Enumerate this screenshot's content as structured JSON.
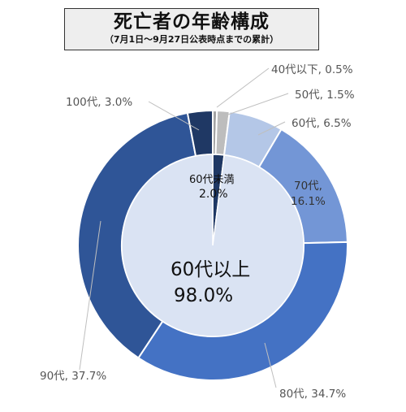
{
  "title": "死亡者の年齢構成",
  "subtitle": "（7月1日～9月27日公表時点までの累計）",
  "chart_data": {
    "type": "pie",
    "subtype": "nested-donut",
    "outer": [
      {
        "label": "40代以下",
        "value": 0.5,
        "text": "40代以下, 0.5%",
        "color": "#a5a5a5"
      },
      {
        "label": "50代",
        "value": 1.5,
        "text": "50代, 1.5%",
        "color": "#bdbdbd"
      },
      {
        "label": "60代",
        "value": 6.5,
        "text": "60代, 6.5%",
        "color": "#b4c7e7"
      },
      {
        "label": "70代",
        "value": 16.1,
        "text": "70代,",
        "text2": "16.1%",
        "color": "#7396d6"
      },
      {
        "label": "80代",
        "value": 34.7,
        "text": "80代, 34.7%",
        "color": "#4472c4"
      },
      {
        "label": "90代",
        "value": 37.7,
        "text": "90代, 37.7%",
        "color": "#2f5597"
      },
      {
        "label": "100代",
        "value": 3.0,
        "text": "100代, 3.0%",
        "color": "#1f3864"
      }
    ],
    "inner": [
      {
        "label": "60代未満",
        "value": 2.0,
        "text": "60代未満",
        "text2": "2.0%",
        "color": "#1f3864"
      },
      {
        "label": "60代以上",
        "value": 98.0,
        "text": "60代以上",
        "text2": "98.0%",
        "color": "#dae3f3"
      }
    ]
  }
}
